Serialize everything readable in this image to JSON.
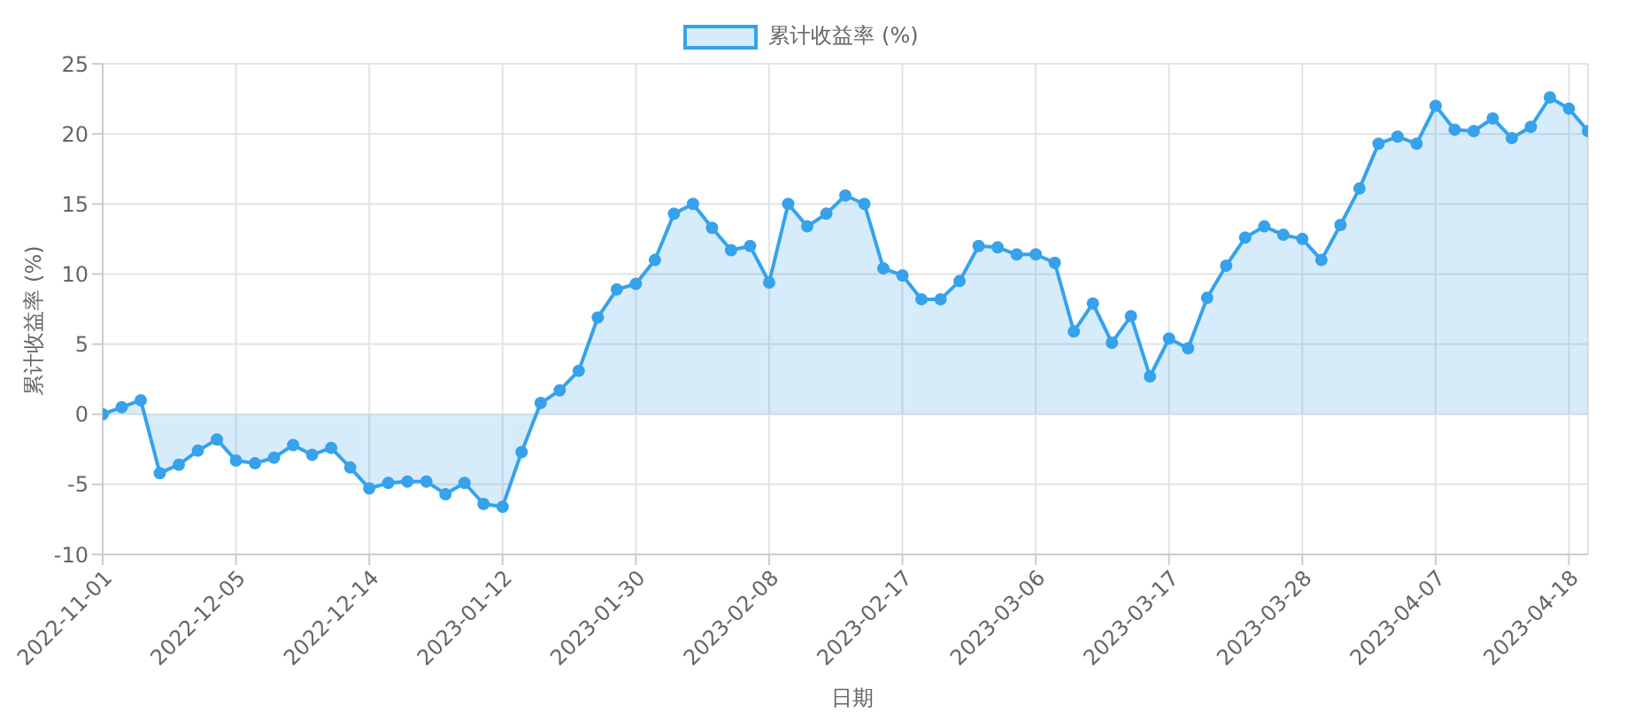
{
  "chart_data": {
    "type": "area",
    "xlabel": "日期",
    "ylabel": "累计收益率 (%)",
    "categories": [
      "2022-11-01",
      null,
      null,
      null,
      null,
      null,
      null,
      "2022-12-05",
      null,
      null,
      null,
      null,
      null,
      null,
      "2022-12-14",
      null,
      null,
      null,
      null,
      null,
      null,
      "2023-01-12",
      null,
      null,
      null,
      null,
      null,
      null,
      "2023-01-30",
      null,
      null,
      null,
      null,
      null,
      null,
      "2023-02-08",
      null,
      null,
      null,
      null,
      null,
      null,
      "2023-02-17",
      null,
      null,
      null,
      null,
      null,
      null,
      "2023-03-06",
      null,
      null,
      null,
      null,
      null,
      null,
      "2023-03-17",
      null,
      null,
      null,
      null,
      null,
      null,
      "2023-03-28",
      null,
      null,
      null,
      null,
      null,
      null,
      "2023-04-07",
      null,
      null,
      null,
      null,
      null,
      null,
      "2023-04-18",
      null
    ],
    "series": [
      {
        "name": "累计收益率 (%)",
        "color": "#36a2eb",
        "values": [
          0,
          0.5,
          1.0,
          -4.2,
          -3.6,
          -2.6,
          -1.8,
          -3.3,
          -3.5,
          -3.1,
          -2.2,
          -2.9,
          -2.4,
          -3.8,
          -5.3,
          -4.9,
          -4.8,
          -4.8,
          -5.7,
          -4.9,
          -6.4,
          -6.6,
          -2.7,
          0.8,
          1.7,
          3.1,
          6.9,
          8.9,
          9.3,
          11.0,
          14.3,
          15.0,
          13.3,
          11.7,
          12.0,
          9.4,
          15.0,
          13.4,
          14.3,
          15.6,
          15.0,
          10.4,
          9.9,
          8.2,
          8.2,
          9.5,
          12.0,
          11.9,
          11.4,
          11.4,
          10.8,
          5.9,
          7.9,
          5.1,
          7.0,
          2.7,
          5.4,
          4.7,
          8.3,
          10.6,
          12.6,
          13.4,
          12.8,
          12.5,
          11.0,
          13.5,
          16.1,
          19.3,
          19.8,
          19.3,
          22.0,
          20.3,
          20.2,
          21.1,
          19.7,
          20.5,
          22.6,
          21.8,
          20.2
        ]
      }
    ],
    "ylim": [
      -10,
      25
    ],
    "yticks": [
      -10,
      -5,
      0,
      5,
      10,
      15,
      20,
      25
    ],
    "grid": true,
    "legend": "top",
    "marker": "circle",
    "line_style": "solid"
  }
}
